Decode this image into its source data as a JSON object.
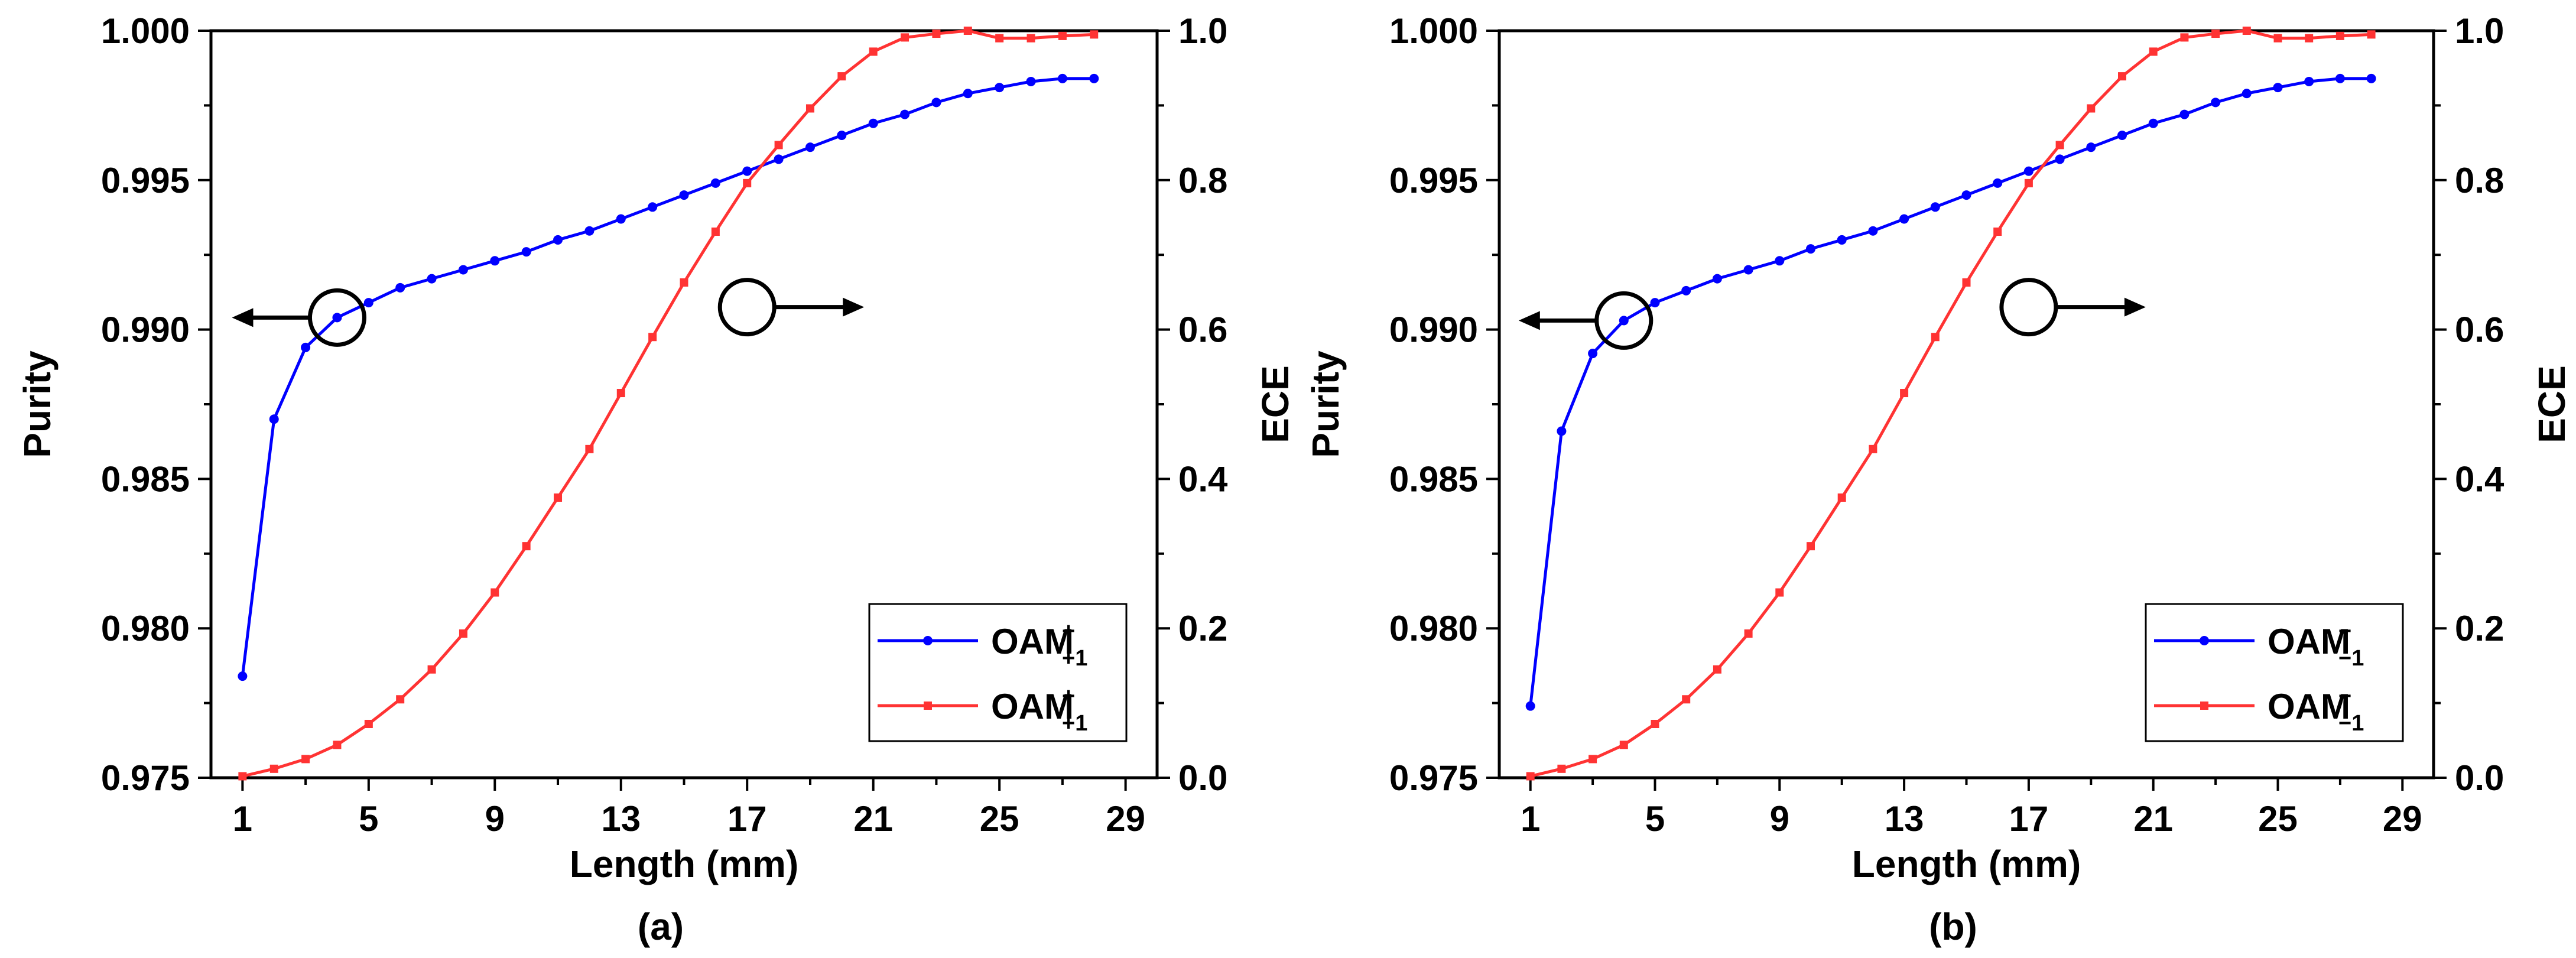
{
  "chart_data": [
    {
      "type": "line",
      "panel_label": "(a)",
      "xlabel": "Length (mm)",
      "ylabel": "Purity",
      "y2label": "ECE",
      "xlim": [
        0,
        30
      ],
      "ylim": [
        0.975,
        1.0
      ],
      "y2lim": [
        0.0,
        1.0
      ],
      "xticks": [
        1,
        5,
        9,
        13,
        17,
        21,
        25,
        29
      ],
      "yticks": [
        "0.975",
        "0.980",
        "0.985",
        "0.990",
        "0.995",
        "1.000"
      ],
      "y2ticks": [
        "0.0",
        "0.2",
        "0.4",
        "0.6",
        "0.8",
        "1.0"
      ],
      "legend_position": "bottom-right",
      "x": [
        1,
        2,
        3,
        4,
        5,
        6,
        7,
        8,
        9,
        10,
        11,
        12,
        13,
        14,
        15,
        16,
        17,
        18,
        19,
        20,
        21,
        22,
        23,
        24,
        25,
        26,
        27,
        28
      ],
      "series": [
        {
          "name": "OAM",
          "sup": "+",
          "sub": "+1",
          "axis": "left",
          "color": "#0000ff",
          "marker": "circle",
          "values": [
            0.9784,
            0.987,
            0.9894,
            0.9904,
            0.9909,
            0.9914,
            0.9917,
            0.992,
            0.9923,
            0.9926,
            0.993,
            0.9933,
            0.9937,
            0.9941,
            0.9945,
            0.9949,
            0.9953,
            0.9957,
            0.9961,
            0.9965,
            0.9969,
            0.9972,
            0.9976,
            0.9979,
            0.9981,
            0.9983,
            0.9984,
            0.9984
          ]
        },
        {
          "name": "OAM",
          "sup": "+",
          "sub": "+1",
          "axis": "right",
          "color": "#ff3333",
          "marker": "square",
          "values": [
            0.002,
            0.012,
            0.025,
            0.044,
            0.072,
            0.105,
            0.145,
            0.193,
            0.248,
            0.31,
            0.375,
            0.44,
            0.515,
            0.59,
            0.663,
            0.731,
            0.796,
            0.847,
            0.896,
            0.939,
            0.972,
            0.991,
            0.996,
            1.0,
            0.99,
            0.99,
            0.993,
            0.995
          ]
        }
      ],
      "annotations": [
        {
          "type": "circle-arrow",
          "x": 4,
          "axis": "left",
          "y": 0.9904,
          "direction": "left"
        },
        {
          "type": "circle-arrow",
          "x": 17,
          "axis": "right",
          "y": 0.63,
          "direction": "right"
        }
      ]
    },
    {
      "type": "line",
      "panel_label": "(b)",
      "xlabel": "Length (mm)",
      "ylabel": "Purity",
      "y2label": "ECE",
      "xlim": [
        0,
        30
      ],
      "ylim": [
        0.975,
        1.0
      ],
      "y2lim": [
        0.0,
        1.0
      ],
      "xticks": [
        1,
        5,
        9,
        13,
        17,
        21,
        25,
        29
      ],
      "yticks": [
        "0.975",
        "0.980",
        "0.985",
        "0.990",
        "0.995",
        "1.000"
      ],
      "y2ticks": [
        "0.0",
        "0.2",
        "0.4",
        "0.6",
        "0.8",
        "1.0"
      ],
      "legend_position": "bottom-right",
      "x": [
        1,
        2,
        3,
        4,
        5,
        6,
        7,
        8,
        9,
        10,
        11,
        12,
        13,
        14,
        15,
        16,
        17,
        18,
        19,
        20,
        21,
        22,
        23,
        24,
        25,
        26,
        27,
        28
      ],
      "series": [
        {
          "name": "OAM",
          "sup": "−",
          "sub": "−1",
          "axis": "left",
          "color": "#0000ff",
          "marker": "circle",
          "values": [
            0.9774,
            0.9866,
            0.9892,
            0.9903,
            0.9909,
            0.9913,
            0.9917,
            0.992,
            0.9923,
            0.9927,
            0.993,
            0.9933,
            0.9937,
            0.9941,
            0.9945,
            0.9949,
            0.9953,
            0.9957,
            0.9961,
            0.9965,
            0.9969,
            0.9972,
            0.9976,
            0.9979,
            0.9981,
            0.9983,
            0.9984,
            0.9984
          ]
        },
        {
          "name": "OAM",
          "sup": "−",
          "sub": "−1",
          "axis": "right",
          "color": "#ff3333",
          "marker": "square",
          "values": [
            0.002,
            0.012,
            0.025,
            0.044,
            0.072,
            0.105,
            0.145,
            0.193,
            0.248,
            0.31,
            0.375,
            0.44,
            0.515,
            0.59,
            0.663,
            0.731,
            0.796,
            0.847,
            0.896,
            0.939,
            0.972,
            0.991,
            0.996,
            1.0,
            0.99,
            0.99,
            0.993,
            0.995
          ]
        }
      ],
      "annotations": [
        {
          "type": "circle-arrow",
          "x": 4,
          "axis": "left",
          "y": 0.9903,
          "direction": "left"
        },
        {
          "type": "circle-arrow",
          "x": 17,
          "axis": "right",
          "y": 0.63,
          "direction": "right"
        }
      ]
    }
  ]
}
